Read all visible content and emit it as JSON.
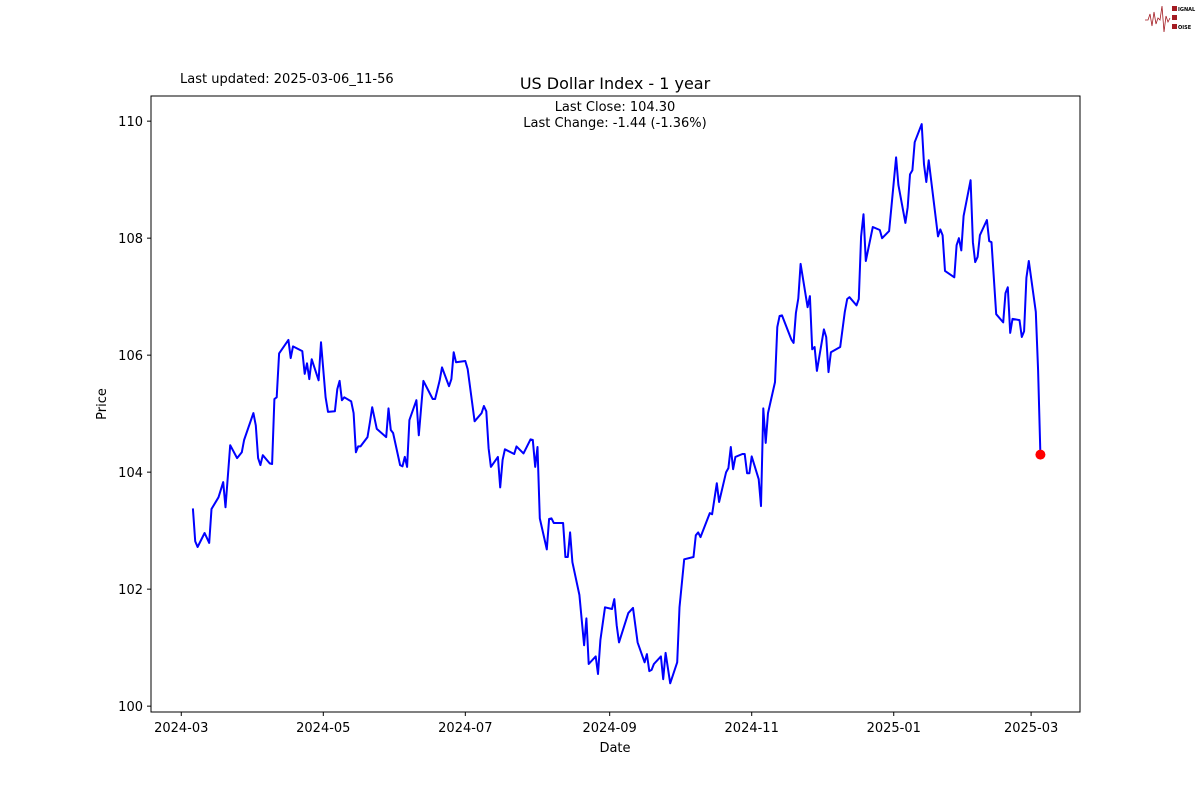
{
  "header": {
    "last_updated": "Last updated: 2025-03-06_11-56",
    "logo_text": "SIGNAL 2 NOISE"
  },
  "chart_data": {
    "type": "line",
    "title": "US Dollar Index - 1 year",
    "annotation_line1": "Last Close: 104.30",
    "annotation_line2": "Last Change: -1.44 (-1.36%)",
    "xlabel": "Date",
    "ylabel": "Price",
    "xlim": [
      "2024-02-17",
      "2025-03-22"
    ],
    "ylim": [
      99.9,
      110.43
    ],
    "x_ticks": [
      "2024-03",
      "2024-05",
      "2024-07",
      "2024-09",
      "2024-11",
      "2025-01",
      "2025-03"
    ],
    "y_ticks": [
      100,
      102,
      104,
      106,
      108,
      110
    ],
    "grid": false,
    "line_color": "#0000ff",
    "last_point_color": "#ff0000",
    "last_point": [
      "2025-03-05",
      104.3
    ],
    "series": [
      {
        "points": [
          [
            "2024-03-06",
            103.38
          ],
          [
            "2024-03-07",
            102.82
          ],
          [
            "2024-03-08",
            102.72
          ],
          [
            "2024-03-11",
            102.96
          ],
          [
            "2024-03-13",
            102.79
          ],
          [
            "2024-03-14",
            103.37
          ],
          [
            "2024-03-17",
            103.57
          ],
          [
            "2024-03-19",
            103.83
          ],
          [
            "2024-03-20",
            103.4
          ],
          [
            "2024-03-22",
            104.46
          ],
          [
            "2024-03-25",
            104.24
          ],
          [
            "2024-03-27",
            104.34
          ],
          [
            "2024-03-28",
            104.55
          ],
          [
            "2024-04-01",
            105.01
          ],
          [
            "2024-04-02",
            104.8
          ],
          [
            "2024-04-03",
            104.24
          ],
          [
            "2024-04-04",
            104.12
          ],
          [
            "2024-04-05",
            104.29
          ],
          [
            "2024-04-08",
            104.15
          ],
          [
            "2024-04-09",
            104.14
          ],
          [
            "2024-04-10",
            105.25
          ],
          [
            "2024-04-11",
            105.28
          ],
          [
            "2024-04-12",
            106.03
          ],
          [
            "2024-04-16",
            106.26
          ],
          [
            "2024-04-17",
            105.95
          ],
          [
            "2024-04-18",
            106.15
          ],
          [
            "2024-04-22",
            106.07
          ],
          [
            "2024-04-23",
            105.68
          ],
          [
            "2024-04-24",
            105.86
          ],
          [
            "2024-04-25",
            105.59
          ],
          [
            "2024-04-26",
            105.93
          ],
          [
            "2024-04-29",
            105.57
          ],
          [
            "2024-04-30",
            106.22
          ],
          [
            "2024-05-02",
            105.28
          ],
          [
            "2024-05-03",
            105.03
          ],
          [
            "2024-05-06",
            105.04
          ],
          [
            "2024-05-07",
            105.42
          ],
          [
            "2024-05-08",
            105.56
          ],
          [
            "2024-05-09",
            105.23
          ],
          [
            "2024-05-10",
            105.28
          ],
          [
            "2024-05-13",
            105.21
          ],
          [
            "2024-05-14",
            105.01
          ],
          [
            "2024-05-15",
            104.34
          ],
          [
            "2024-05-16",
            104.44
          ],
          [
            "2024-05-17",
            104.44
          ],
          [
            "2024-05-20",
            104.6
          ],
          [
            "2024-05-21",
            104.85
          ],
          [
            "2024-05-22",
            105.11
          ],
          [
            "2024-05-24",
            104.74
          ],
          [
            "2024-05-28",
            104.6
          ],
          [
            "2024-05-29",
            105.09
          ],
          [
            "2024-05-30",
            104.72
          ],
          [
            "2024-05-31",
            104.67
          ],
          [
            "2024-06-03",
            104.12
          ],
          [
            "2024-06-04",
            104.1
          ],
          [
            "2024-06-05",
            104.26
          ],
          [
            "2024-06-06",
            104.09
          ],
          [
            "2024-06-07",
            104.89
          ],
          [
            "2024-06-10",
            105.23
          ],
          [
            "2024-06-11",
            104.63
          ],
          [
            "2024-06-13",
            105.56
          ],
          [
            "2024-06-17",
            105.25
          ],
          [
            "2024-06-18",
            105.25
          ],
          [
            "2024-06-20",
            105.57
          ],
          [
            "2024-06-21",
            105.79
          ],
          [
            "2024-06-24",
            105.47
          ],
          [
            "2024-06-25",
            105.59
          ],
          [
            "2024-06-26",
            106.05
          ],
          [
            "2024-06-27",
            105.88
          ],
          [
            "2024-07-01",
            105.9
          ],
          [
            "2024-07-02",
            105.76
          ],
          [
            "2024-07-05",
            104.87
          ],
          [
            "2024-07-08",
            105.01
          ],
          [
            "2024-07-09",
            105.13
          ],
          [
            "2024-07-10",
            105.04
          ],
          [
            "2024-07-11",
            104.41
          ],
          [
            "2024-07-12",
            104.09
          ],
          [
            "2024-07-15",
            104.26
          ],
          [
            "2024-07-16",
            103.74
          ],
          [
            "2024-07-17",
            104.21
          ],
          [
            "2024-07-18",
            104.39
          ],
          [
            "2024-07-22",
            104.31
          ],
          [
            "2024-07-23",
            104.44
          ],
          [
            "2024-07-26",
            104.32
          ],
          [
            "2024-07-29",
            104.56
          ],
          [
            "2024-07-30",
            104.55
          ],
          [
            "2024-07-31",
            104.09
          ],
          [
            "2024-08-01",
            104.43
          ],
          [
            "2024-08-02",
            103.21
          ],
          [
            "2024-08-05",
            102.68
          ],
          [
            "2024-08-06",
            103.2
          ],
          [
            "2024-08-07",
            103.21
          ],
          [
            "2024-08-08",
            103.13
          ],
          [
            "2024-08-12",
            103.13
          ],
          [
            "2024-08-13",
            102.55
          ],
          [
            "2024-08-14",
            102.55
          ],
          [
            "2024-08-15",
            102.97
          ],
          [
            "2024-08-16",
            102.46
          ],
          [
            "2024-08-19",
            101.9
          ],
          [
            "2024-08-21",
            101.04
          ],
          [
            "2024-08-22",
            101.5
          ],
          [
            "2024-08-23",
            100.72
          ],
          [
            "2024-08-26",
            100.85
          ],
          [
            "2024-08-27",
            100.55
          ],
          [
            "2024-08-28",
            101.13
          ],
          [
            "2024-08-30",
            101.69
          ],
          [
            "2024-09-02",
            101.66
          ],
          [
            "2024-09-03",
            101.83
          ],
          [
            "2024-09-04",
            101.38
          ],
          [
            "2024-09-05",
            101.09
          ],
          [
            "2024-09-09",
            101.59
          ],
          [
            "2024-09-11",
            101.68
          ],
          [
            "2024-09-13",
            101.09
          ],
          [
            "2024-09-16",
            100.75
          ],
          [
            "2024-09-17",
            100.89
          ],
          [
            "2024-09-18",
            100.6
          ],
          [
            "2024-09-19",
            100.62
          ],
          [
            "2024-09-20",
            100.72
          ],
          [
            "2024-09-23",
            100.85
          ],
          [
            "2024-09-24",
            100.46
          ],
          [
            "2024-09-25",
            100.91
          ],
          [
            "2024-09-27",
            100.39
          ],
          [
            "2024-09-30",
            100.75
          ],
          [
            "2024-10-01",
            101.69
          ],
          [
            "2024-10-03",
            102.51
          ],
          [
            "2024-10-07",
            102.55
          ],
          [
            "2024-10-08",
            102.92
          ],
          [
            "2024-10-09",
            102.97
          ],
          [
            "2024-10-10",
            102.89
          ],
          [
            "2024-10-14",
            103.3
          ],
          [
            "2024-10-15",
            103.28
          ],
          [
            "2024-10-17",
            103.81
          ],
          [
            "2024-10-18",
            103.49
          ],
          [
            "2024-10-21",
            104.0
          ],
          [
            "2024-10-22",
            104.07
          ],
          [
            "2024-10-23",
            104.43
          ],
          [
            "2024-10-24",
            104.05
          ],
          [
            "2024-10-25",
            104.26
          ],
          [
            "2024-10-28",
            104.31
          ],
          [
            "2024-10-29",
            104.31
          ],
          [
            "2024-10-30",
            103.98
          ],
          [
            "2024-10-31",
            103.98
          ],
          [
            "2024-11-01",
            104.27
          ],
          [
            "2024-11-04",
            103.88
          ],
          [
            "2024-11-05",
            103.42
          ],
          [
            "2024-11-06",
            105.09
          ],
          [
            "2024-11-07",
            104.5
          ],
          [
            "2024-11-08",
            105.01
          ],
          [
            "2024-11-11",
            105.54
          ],
          [
            "2024-11-12",
            106.48
          ],
          [
            "2024-11-13",
            106.67
          ],
          [
            "2024-11-14",
            106.68
          ],
          [
            "2024-11-18",
            106.27
          ],
          [
            "2024-11-19",
            106.21
          ],
          [
            "2024-11-20",
            106.72
          ],
          [
            "2024-11-21",
            106.97
          ],
          [
            "2024-11-22",
            107.56
          ],
          [
            "2024-11-25",
            106.82
          ],
          [
            "2024-11-26",
            107.01
          ],
          [
            "2024-11-27",
            106.1
          ],
          [
            "2024-11-28",
            106.14
          ],
          [
            "2024-11-29",
            105.73
          ],
          [
            "2024-12-02",
            106.44
          ],
          [
            "2024-12-03",
            106.31
          ],
          [
            "2024-12-04",
            105.71
          ],
          [
            "2024-12-05",
            106.05
          ],
          [
            "2024-12-09",
            106.14
          ],
          [
            "2024-12-11",
            106.74
          ],
          [
            "2024-12-12",
            106.96
          ],
          [
            "2024-12-13",
            106.99
          ],
          [
            "2024-12-16",
            106.85
          ],
          [
            "2024-12-17",
            106.96
          ],
          [
            "2024-12-18",
            108.03
          ],
          [
            "2024-12-19",
            108.41
          ],
          [
            "2024-12-20",
            107.61
          ],
          [
            "2024-12-23",
            108.19
          ],
          [
            "2024-12-26",
            108.14
          ],
          [
            "2024-12-27",
            108.0
          ],
          [
            "2024-12-30",
            108.12
          ],
          [
            "2024-12-31",
            108.53
          ],
          [
            "2025-01-02",
            109.38
          ],
          [
            "2025-01-03",
            108.91
          ],
          [
            "2025-01-06",
            108.26
          ],
          [
            "2025-01-07",
            108.53
          ],
          [
            "2025-01-08",
            109.09
          ],
          [
            "2025-01-09",
            109.16
          ],
          [
            "2025-01-10",
            109.64
          ],
          [
            "2025-01-13",
            109.95
          ],
          [
            "2025-01-14",
            109.26
          ],
          [
            "2025-01-15",
            108.96
          ],
          [
            "2025-01-16",
            109.33
          ],
          [
            "2025-01-20",
            108.03
          ],
          [
            "2025-01-21",
            108.15
          ],
          [
            "2025-01-22",
            108.05
          ],
          [
            "2025-01-23",
            107.44
          ],
          [
            "2025-01-27",
            107.33
          ],
          [
            "2025-01-28",
            107.88
          ],
          [
            "2025-01-29",
            108.0
          ],
          [
            "2025-01-30",
            107.79
          ],
          [
            "2025-01-31",
            108.38
          ],
          [
            "2025-02-03",
            108.99
          ],
          [
            "2025-02-04",
            107.93
          ],
          [
            "2025-02-05",
            107.59
          ],
          [
            "2025-02-06",
            107.68
          ],
          [
            "2025-02-07",
            108.05
          ],
          [
            "2025-02-10",
            108.31
          ],
          [
            "2025-02-11",
            107.95
          ],
          [
            "2025-02-12",
            107.93
          ],
          [
            "2025-02-14",
            106.7
          ],
          [
            "2025-02-17",
            106.56
          ],
          [
            "2025-02-18",
            107.06
          ],
          [
            "2025-02-19",
            107.16
          ],
          [
            "2025-02-20",
            106.38
          ],
          [
            "2025-02-21",
            106.62
          ],
          [
            "2025-02-24",
            106.6
          ],
          [
            "2025-02-25",
            106.31
          ],
          [
            "2025-02-26",
            106.41
          ],
          [
            "2025-02-27",
            107.32
          ],
          [
            "2025-02-28",
            107.61
          ],
          [
            "2025-03-03",
            106.74
          ],
          [
            "2025-03-04",
            105.74
          ],
          [
            "2025-03-05",
            104.3
          ]
        ]
      }
    ]
  }
}
